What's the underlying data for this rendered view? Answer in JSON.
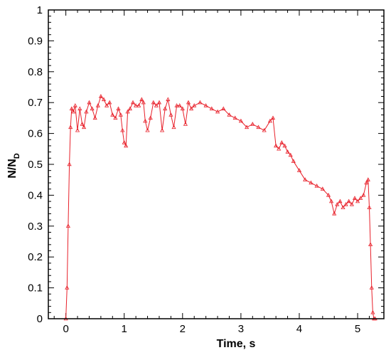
{
  "chart_data": {
    "type": "line",
    "title": "",
    "xlabel": "Time, s",
    "ylabel_main": "N/N",
    "ylabel_sub": "D",
    "xlim": [
      -0.3,
      5.45
    ],
    "ylim": [
      0,
      1
    ],
    "x_ticks": [
      0,
      1,
      2,
      3,
      4,
      5
    ],
    "y_ticks": [
      0,
      0.1,
      0.2,
      0.3,
      0.4,
      0.5,
      0.6,
      0.7,
      0.8,
      0.9,
      1
    ],
    "x_tick_labels": [
      "0",
      "1",
      "2",
      "3",
      "4",
      "5"
    ],
    "y_tick_labels": [
      "0",
      "0.1",
      "0.2",
      "0.3",
      "0.4",
      "0.5",
      "0.6",
      "0.7",
      "0.8",
      "0.9",
      "1"
    ],
    "grid": false,
    "series_color": "#e8202a",
    "marker": "triangle",
    "series": [
      {
        "x": [
          0.0,
          0.02,
          0.04,
          0.06,
          0.08,
          0.1,
          0.13,
          0.16,
          0.2,
          0.24,
          0.28,
          0.31,
          0.35,
          0.4,
          0.45,
          0.5,
          0.55,
          0.6,
          0.65,
          0.7,
          0.75,
          0.8,
          0.85,
          0.9,
          0.94,
          0.97,
          1.0,
          1.03,
          1.06,
          1.1,
          1.15,
          1.2,
          1.25,
          1.3,
          1.33,
          1.36,
          1.4,
          1.45,
          1.5,
          1.55,
          1.6,
          1.65,
          1.7,
          1.75,
          1.8,
          1.85,
          1.9,
          1.95,
          2.0,
          2.05,
          2.1,
          2.15,
          2.2,
          2.3,
          2.4,
          2.5,
          2.6,
          2.7,
          2.8,
          2.9,
          3.0,
          3.1,
          3.2,
          3.3,
          3.4,
          3.5,
          3.55,
          3.6,
          3.65,
          3.7,
          3.75,
          3.8,
          3.85,
          3.9,
          4.0,
          4.1,
          4.2,
          4.3,
          4.4,
          4.5,
          4.55,
          4.6,
          4.65,
          4.7,
          4.75,
          4.8,
          4.85,
          4.9,
          4.95,
          5.0,
          5.05,
          5.1,
          5.15,
          5.18,
          5.2,
          5.22,
          5.24,
          5.26,
          5.28,
          5.3
        ],
        "y": [
          0.0,
          0.1,
          0.3,
          0.5,
          0.62,
          0.68,
          0.67,
          0.69,
          0.61,
          0.68,
          0.63,
          0.62,
          0.67,
          0.7,
          0.68,
          0.65,
          0.69,
          0.72,
          0.71,
          0.69,
          0.7,
          0.66,
          0.65,
          0.68,
          0.66,
          0.61,
          0.57,
          0.56,
          0.67,
          0.68,
          0.7,
          0.69,
          0.69,
          0.71,
          0.7,
          0.64,
          0.61,
          0.65,
          0.7,
          0.69,
          0.7,
          0.61,
          0.68,
          0.71,
          0.66,
          0.62,
          0.69,
          0.69,
          0.68,
          0.63,
          0.7,
          0.68,
          0.69,
          0.7,
          0.69,
          0.68,
          0.67,
          0.68,
          0.66,
          0.65,
          0.64,
          0.62,
          0.63,
          0.62,
          0.61,
          0.64,
          0.65,
          0.56,
          0.55,
          0.57,
          0.56,
          0.54,
          0.53,
          0.51,
          0.48,
          0.45,
          0.44,
          0.43,
          0.42,
          0.4,
          0.38,
          0.34,
          0.37,
          0.38,
          0.36,
          0.37,
          0.38,
          0.37,
          0.39,
          0.38,
          0.39,
          0.4,
          0.44,
          0.45,
          0.36,
          0.24,
          0.1,
          0.02,
          0.0,
          0.0
        ]
      }
    ]
  }
}
